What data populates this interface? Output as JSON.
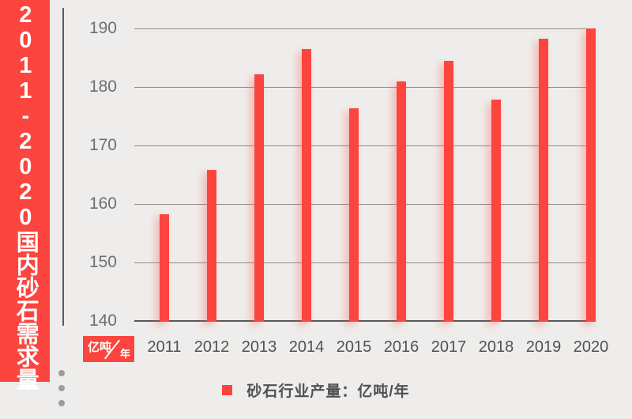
{
  "banner": {
    "title": "2011-2020国内砂石需求量"
  },
  "unit_box": {
    "numerator": "亿吨",
    "denominator": "年",
    "combined": "亿吨/年"
  },
  "legend": {
    "label": "砂石行业产量：亿吨/年"
  },
  "colors": {
    "red": "#fb453e",
    "background": "#efedeb",
    "gridline": "#8f8d8b",
    "axis": "#58585a"
  },
  "chart_data": {
    "type": "bar",
    "title": "2011-2020国内砂石需求量",
    "categories": [
      "2011",
      "2012",
      "2013",
      "2014",
      "2015",
      "2016",
      "2017",
      "2018",
      "2019",
      "2020"
    ],
    "values": [
      158.2,
      165.8,
      182.2,
      186.5,
      176.4,
      180.9,
      184.5,
      177.8,
      188.2,
      190
    ],
    "series_name": "砂石行业产量",
    "xlabel": "",
    "ylabel": "亿吨/年",
    "ylim": [
      140,
      190
    ],
    "yticks": [
      140,
      150,
      160,
      170,
      180,
      190
    ],
    "grid": true,
    "legend_position": "bottom"
  }
}
